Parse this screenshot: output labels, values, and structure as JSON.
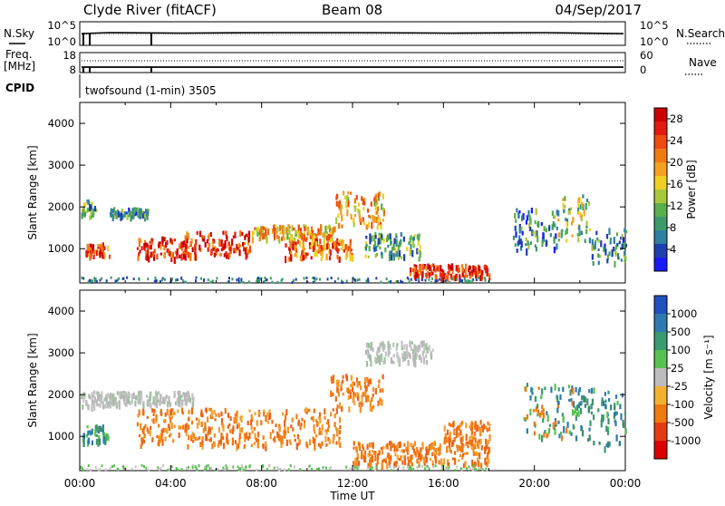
{
  "header": {
    "station": "Clyde River (fitACF)",
    "beam": "Beam 08",
    "date": "04/Sep/2017"
  },
  "top_panels": {
    "nsky_label": "N.Sky",
    "nsky_ticks": [
      "10^5",
      "10^0"
    ],
    "nsearch_label": "N.Search",
    "nsearch_ticks": [
      "10^5",
      "10^0"
    ],
    "freq_label_1": "Freq.",
    "freq_label_2": "[MHz]",
    "freq_ticks": [
      "18",
      "8"
    ],
    "nave_label": "Nave",
    "nave_ticks": [
      "60",
      "0"
    ],
    "cpid_label": "CPID",
    "cpid_text": "twofsound (1-min) 3505"
  },
  "chart_data": [
    {
      "type": "heatmap",
      "title": "",
      "xlabel": "Time UT",
      "ylabel": "Slant Range [km]",
      "x_range_hours": [
        0,
        24
      ],
      "x_ticks": [
        "00:00",
        "04:00",
        "08:00",
        "12:00",
        "16:00",
        "20:00",
        "00:00"
      ],
      "y_range_km": [
        180,
        4500
      ],
      "y_ticks": [
        1000,
        2000,
        3000,
        4000
      ],
      "colorbar": {
        "label": "Power [dB]",
        "ticks": [
          "4",
          "8",
          "12",
          "16",
          "20",
          "24",
          "28"
        ],
        "range": [
          0,
          30
        ],
        "colors": [
          "#1a1aff",
          "#1e3fb0",
          "#2e7fa0",
          "#3d9a6a",
          "#58b04a",
          "#a8c83a",
          "#f0d020",
          "#f5a020",
          "#f07a10",
          "#ef4a10",
          "#e41a10",
          "#cc0000"
        ]
      },
      "echo_regions": [
        {
          "t": [
            0.0,
            0.7
          ],
          "r": [
            1750,
            2200
          ],
          "level": 10
        },
        {
          "t": [
            0.2,
            1.3
          ],
          "r": [
            850,
            1150
          ],
          "level": 24
        },
        {
          "t": [
            1.3,
            3.0
          ],
          "r": [
            1800,
            2000
          ],
          "level": 8
        },
        {
          "t": [
            2.5,
            4.7
          ],
          "r": [
            800,
            1300
          ],
          "level": 26
        },
        {
          "t": [
            4.5,
            7.5
          ],
          "r": [
            850,
            1450
          ],
          "level": 26
        },
        {
          "t": [
            7.5,
            11.2
          ],
          "r": [
            1250,
            1600
          ],
          "level": 18
        },
        {
          "t": [
            9.0,
            12.0
          ],
          "r": [
            800,
            1250
          ],
          "level": 22
        },
        {
          "t": [
            11.2,
            13.4
          ],
          "r": [
            1500,
            2400
          ],
          "level": 18
        },
        {
          "t": [
            12.5,
            15.0
          ],
          "r": [
            800,
            1400
          ],
          "level": 10
        },
        {
          "t": [
            14.5,
            18.0
          ],
          "r": [
            350,
            650
          ],
          "level": 26
        },
        {
          "t": [
            19.0,
            21.0
          ],
          "r": [
            1000,
            2000
          ],
          "level": 8
        },
        {
          "t": [
            21.0,
            22.5
          ],
          "r": [
            1200,
            2300
          ],
          "level": 12
        },
        {
          "t": [
            22.5,
            24.0
          ],
          "r": [
            700,
            1500
          ],
          "level": 8
        }
      ]
    },
    {
      "type": "heatmap",
      "title": "",
      "xlabel": "Time UT",
      "ylabel": "Slant Range [km]",
      "x_range_hours": [
        0,
        24
      ],
      "x_ticks": [
        "00:00",
        "04:00",
        "08:00",
        "12:00",
        "16:00",
        "20:00",
        "00:00"
      ],
      "y_range_km": [
        180,
        4500
      ],
      "y_ticks": [
        1000,
        2000,
        3000,
        4000
      ],
      "colorbar": {
        "label": "Velocity [m s⁻¹]",
        "ticks": [
          "1000",
          "500",
          "100",
          "25",
          "-25",
          "-100",
          "-500",
          "-1000"
        ],
        "colors": [
          "#2050c0",
          "#2e7ab0",
          "#3a9a70",
          "#58c050",
          "#bdbdbd",
          "#f5b030",
          "#f07a10",
          "#e83a10",
          "#dd0000"
        ]
      },
      "echo_regions": [
        {
          "t": [
            0.0,
            1.5
          ],
          "r": [
            1750,
            2100
          ],
          "v": "ground"
        },
        {
          "t": [
            0.1,
            1.3
          ],
          "r": [
            850,
            1300
          ],
          "v": "towards_fast"
        },
        {
          "t": [
            1.3,
            5.0
          ],
          "r": [
            1800,
            2100
          ],
          "v": "ground"
        },
        {
          "t": [
            2.5,
            11.5
          ],
          "r": [
            800,
            1700
          ],
          "v": "away_mid"
        },
        {
          "t": [
            11.0,
            13.3
          ],
          "r": [
            1700,
            2500
          ],
          "v": "away_mid"
        },
        {
          "t": [
            12.5,
            15.5
          ],
          "r": [
            2800,
            3300
          ],
          "v": "ground"
        },
        {
          "t": [
            12.0,
            18.0
          ],
          "r": [
            350,
            900
          ],
          "v": "away_mid"
        },
        {
          "t": [
            16.0,
            18.0
          ],
          "r": [
            900,
            1400
          ],
          "v": "away_mid"
        },
        {
          "t": [
            19.5,
            22.0
          ],
          "r": [
            1000,
            2300
          ],
          "v": "towards_slow"
        },
        {
          "t": [
            22.0,
            24.0
          ],
          "r": [
            700,
            2200
          ],
          "v": "towards_fast"
        }
      ]
    }
  ]
}
